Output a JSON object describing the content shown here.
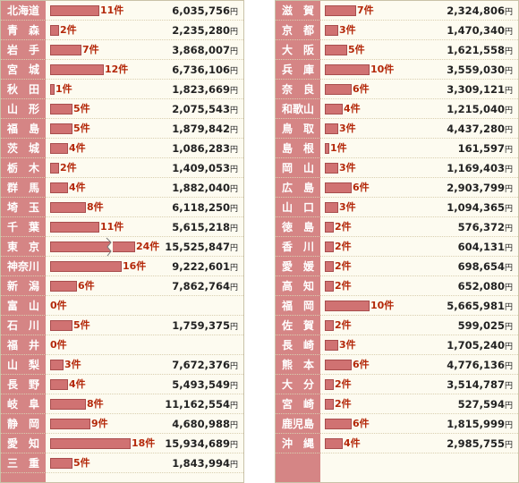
{
  "chart_data": [
    {
      "type": "bar",
      "unit_count": "件",
      "unit_amount": "円",
      "rows": [
        {
          "pref": "北海道",
          "count": 11,
          "amount": "6,035,756"
        },
        {
          "pref": "青　森",
          "count": 2,
          "amount": "2,235,280"
        },
        {
          "pref": "岩　手",
          "count": 7,
          "amount": "3,868,007"
        },
        {
          "pref": "宮　城",
          "count": 12,
          "amount": "6,736,106"
        },
        {
          "pref": "秋　田",
          "count": 1,
          "amount": "1,823,669"
        },
        {
          "pref": "山　形",
          "count": 5,
          "amount": "2,075,543"
        },
        {
          "pref": "福　島",
          "count": 5,
          "amount": "1,879,842"
        },
        {
          "pref": "茨　城",
          "count": 4,
          "amount": "1,086,283"
        },
        {
          "pref": "栃　木",
          "count": 2,
          "amount": "1,409,053"
        },
        {
          "pref": "群　馬",
          "count": 4,
          "amount": "1,882,040"
        },
        {
          "pref": "埼　玉",
          "count": 8,
          "amount": "6,118,250"
        },
        {
          "pref": "千　葉",
          "count": 11,
          "amount": "5,615,218"
        },
        {
          "pref": "東　京",
          "count": 24,
          "amount": "15,525,847",
          "axis_break": true
        },
        {
          "pref": "神奈川",
          "count": 16,
          "amount": "9,222,601"
        },
        {
          "pref": "新　潟",
          "count": 6,
          "amount": "7,862,764"
        },
        {
          "pref": "富　山",
          "count": 0,
          "amount": ""
        },
        {
          "pref": "石　川",
          "count": 5,
          "amount": "1,759,375"
        },
        {
          "pref": "福　井",
          "count": 0,
          "amount": ""
        },
        {
          "pref": "山　梨",
          "count": 3,
          "amount": "7,672,376"
        },
        {
          "pref": "長　野",
          "count": 4,
          "amount": "5,493,549"
        },
        {
          "pref": "岐　阜",
          "count": 8,
          "amount": "11,162,554"
        },
        {
          "pref": "静　岡",
          "count": 9,
          "amount": "4,680,988"
        },
        {
          "pref": "愛　知",
          "count": 18,
          "amount": "15,934,689"
        },
        {
          "pref": "三　重",
          "count": 5,
          "amount": "1,843,994"
        }
      ]
    },
    {
      "type": "bar",
      "unit_count": "件",
      "unit_amount": "円",
      "rows": [
        {
          "pref": "滋　賀",
          "count": 7,
          "amount": "2,324,806"
        },
        {
          "pref": "京　都",
          "count": 3,
          "amount": "1,470,340"
        },
        {
          "pref": "大　阪",
          "count": 5,
          "amount": "1,621,558"
        },
        {
          "pref": "兵　庫",
          "count": 10,
          "amount": "3,559,030"
        },
        {
          "pref": "奈　良",
          "count": 6,
          "amount": "3,309,121"
        },
        {
          "pref": "和歌山",
          "count": 4,
          "amount": "1,215,040"
        },
        {
          "pref": "鳥　取",
          "count": 3,
          "amount": "4,437,280"
        },
        {
          "pref": "島　根",
          "count": 1,
          "amount": "161,597"
        },
        {
          "pref": "岡　山",
          "count": 3,
          "amount": "1,169,403"
        },
        {
          "pref": "広　島",
          "count": 6,
          "amount": "2,903,799"
        },
        {
          "pref": "山　口",
          "count": 3,
          "amount": "1,094,365"
        },
        {
          "pref": "徳　島",
          "count": 2,
          "amount": "576,372"
        },
        {
          "pref": "香　川",
          "count": 2,
          "amount": "604,131"
        },
        {
          "pref": "愛　媛",
          "count": 2,
          "amount": "698,654"
        },
        {
          "pref": "高　知",
          "count": 2,
          "amount": "652,080"
        },
        {
          "pref": "福　岡",
          "count": 10,
          "amount": "5,665,981"
        },
        {
          "pref": "佐　賀",
          "count": 2,
          "amount": "599,025"
        },
        {
          "pref": "長　崎",
          "count": 3,
          "amount": "1,705,240"
        },
        {
          "pref": "熊　本",
          "count": 6,
          "amount": "4,776,136"
        },
        {
          "pref": "大　分",
          "count": 2,
          "amount": "3,514,787"
        },
        {
          "pref": "宮　崎",
          "count": 2,
          "amount": "527,594"
        },
        {
          "pref": "鹿児島",
          "count": 6,
          "amount": "1,815,999"
        },
        {
          "pref": "沖　縄",
          "count": 4,
          "amount": "2,985,755"
        }
      ]
    }
  ],
  "colors": {
    "bar": "#d07272",
    "label_column": "#d58585",
    "count_text": "#b4280a",
    "panel_bg": "#fdfbf0"
  }
}
